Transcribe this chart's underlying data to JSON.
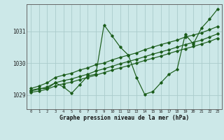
{
  "title": "Graphe pression niveau de la mer (hPa)",
  "background_color": "#cce8e8",
  "grid_color": "#aacccc",
  "line_color": "#1a5c1a",
  "xlim": [
    -0.5,
    23.5
  ],
  "ylim": [
    1028.55,
    1031.85
  ],
  "yticks": [
    1029,
    1030,
    1031
  ],
  "xticks": [
    0,
    1,
    2,
    3,
    4,
    5,
    6,
    7,
    8,
    9,
    10,
    11,
    12,
    13,
    14,
    15,
    16,
    17,
    18,
    19,
    20,
    21,
    22,
    23
  ],
  "y_zigzag": [
    1029.15,
    1029.2,
    1029.2,
    1029.38,
    1029.25,
    1029.05,
    1029.32,
    1029.6,
    1029.65,
    1031.2,
    1030.85,
    1030.5,
    1030.25,
    1029.55,
    1029.02,
    1029.1,
    1029.38,
    1029.65,
    1029.8,
    1030.9,
    1030.6,
    1031.1,
    1031.38,
    1031.7
  ],
  "y_trend1": [
    1029.2,
    1029.28,
    1029.38,
    1029.55,
    1029.62,
    1029.68,
    1029.78,
    1029.85,
    1029.95,
    1030.0,
    1030.1,
    1030.18,
    1030.25,
    1030.32,
    1030.42,
    1030.5,
    1030.58,
    1030.65,
    1030.72,
    1030.82,
    1030.88,
    1030.95,
    1031.05,
    1031.15
  ],
  "y_trend2": [
    1029.12,
    1029.18,
    1029.25,
    1029.38,
    1029.45,
    1029.5,
    1029.58,
    1029.65,
    1029.75,
    1029.82,
    1029.9,
    1029.98,
    1030.05,
    1030.12,
    1030.2,
    1030.28,
    1030.35,
    1030.42,
    1030.5,
    1030.58,
    1030.65,
    1030.72,
    1030.82,
    1030.92
  ],
  "y_trend3": [
    1029.08,
    1029.12,
    1029.18,
    1029.28,
    1029.35,
    1029.4,
    1029.48,
    1029.55,
    1029.62,
    1029.7,
    1029.78,
    1029.85,
    1029.92,
    1030.0,
    1030.08,
    1030.15,
    1030.22,
    1030.3,
    1030.38,
    1030.45,
    1030.52,
    1030.6,
    1030.68,
    1030.78
  ]
}
